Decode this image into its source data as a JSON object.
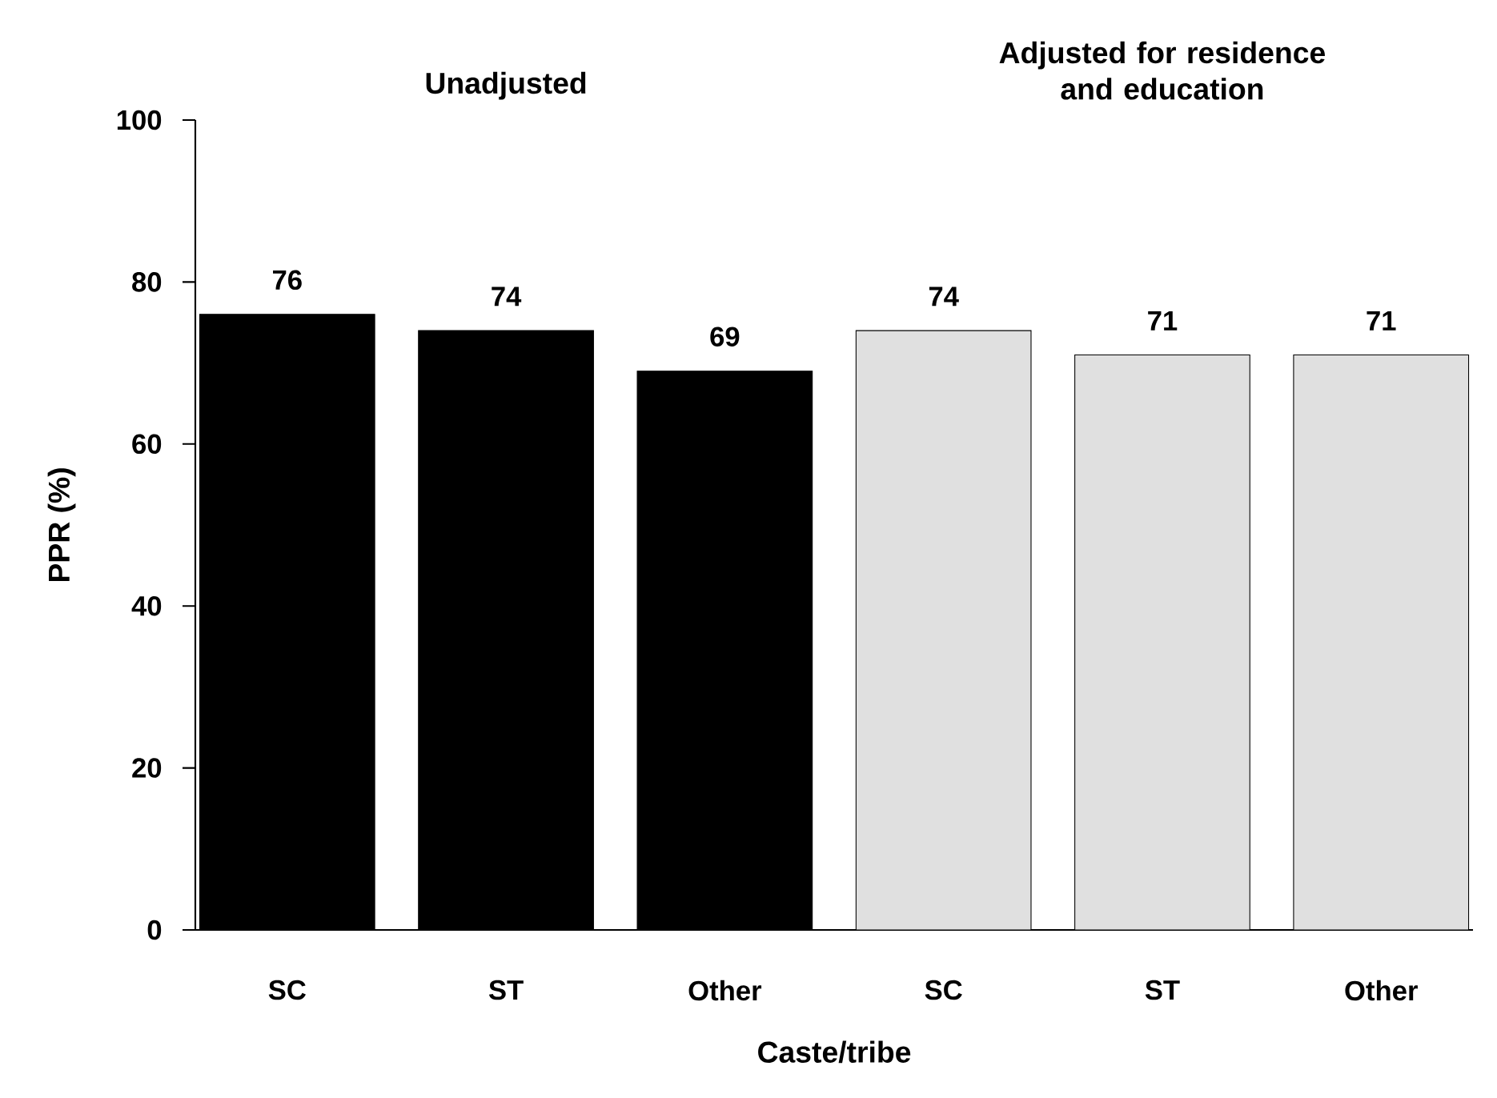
{
  "chart_data": {
    "type": "bar",
    "xlabel": "Caste/tribe",
    "ylabel": "PPR (%)",
    "categories": [
      "SC",
      "ST",
      "Other",
      "SC",
      "ST",
      "Other"
    ],
    "values": [
      76,
      74,
      69,
      74,
      71,
      71
    ],
    "colors": [
      "#000000",
      "#000000",
      "#000000",
      "#e0e0e0",
      "#e0e0e0",
      "#e0e0e0"
    ],
    "data_labels": true,
    "ylim": [
      0,
      100
    ],
    "yticks": [
      0,
      20,
      40,
      60,
      80,
      100
    ],
    "annotations": [
      "Unadjusted",
      "Adjusted for residence and education"
    ]
  }
}
